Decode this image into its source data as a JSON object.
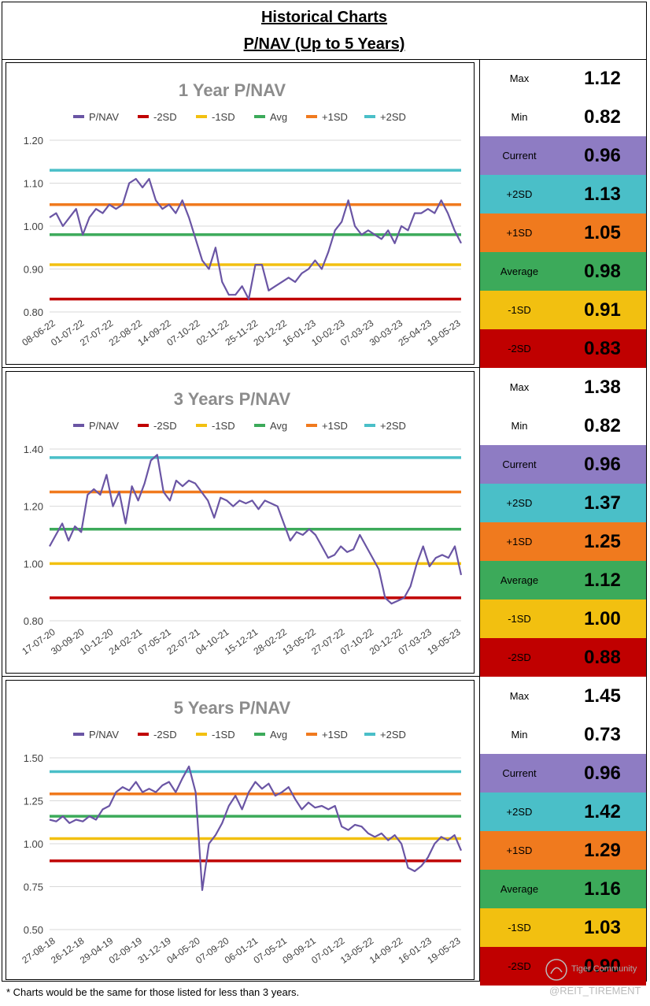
{
  "header": {
    "line1": "Historical Charts",
    "line2": "P/NAV (Up to 5 Years)"
  },
  "legend_labels": [
    "P/NAV",
    "-2SD",
    "-1SD",
    "Avg",
    "+1SD",
    "+2SD"
  ],
  "colors": {
    "pnav": "#6A55A4",
    "minus2": "#C00000",
    "minus1": "#F2C010",
    "avg": "#3CAA5A",
    "plus1": "#F07A1E",
    "plus2": "#4ABFC8",
    "current_bg": "#8E7CC3",
    "plus2_bg": "#4ABFC8",
    "plus1_bg": "#F07A1E",
    "avg_bg": "#3CAA5A",
    "minus1_bg": "#F2C010",
    "minus2_bg": "#C00000"
  },
  "chart_data": [
    {
      "type": "line",
      "title": "1 Year P/NAV",
      "ylim": [
        0.8,
        1.2
      ],
      "yticks": [
        "0.80",
        "0.90",
        "1.00",
        "1.10",
        "1.20"
      ],
      "x_tick_labels": [
        "08-06-22",
        "01-07-22",
        "27-07-22",
        "22-08-22",
        "14-09-22",
        "07-10-22",
        "02-11-22",
        "25-11-22",
        "20-12-22",
        "16-01-23",
        "10-02-23",
        "07-03-23",
        "30-03-23",
        "25-04-23",
        "19-05-23"
      ],
      "series": [
        {
          "name": "P/NAV",
          "values": [
            1.02,
            1.03,
            1.0,
            1.02,
            1.04,
            0.98,
            1.02,
            1.04,
            1.03,
            1.05,
            1.04,
            1.05,
            1.1,
            1.11,
            1.09,
            1.11,
            1.06,
            1.04,
            1.05,
            1.03,
            1.06,
            1.02,
            0.97,
            0.92,
            0.9,
            0.95,
            0.87,
            0.84,
            0.84,
            0.86,
            0.83,
            0.91,
            0.91,
            0.85,
            0.86,
            0.87,
            0.88,
            0.87,
            0.89,
            0.9,
            0.92,
            0.9,
            0.94,
            0.99,
            1.01,
            1.06,
            1.0,
            0.98,
            0.99,
            0.98,
            0.97,
            0.99,
            0.96,
            1.0,
            0.99,
            1.03,
            1.03,
            1.04,
            1.03,
            1.06,
            1.03,
            0.99,
            0.96
          ]
        },
        {
          "name": "-2SD",
          "values": [
            0.83
          ]
        },
        {
          "name": "-1SD",
          "values": [
            0.91
          ]
        },
        {
          "name": "Avg",
          "values": [
            0.98
          ]
        },
        {
          "name": "+1SD",
          "values": [
            1.05
          ]
        },
        {
          "name": "+2SD",
          "values": [
            1.13
          ]
        }
      ]
    },
    {
      "type": "line",
      "title": "3 Years P/NAV",
      "ylim": [
        0.8,
        1.4
      ],
      "yticks": [
        "0.80",
        "1.00",
        "1.20",
        "1.40"
      ],
      "x_tick_labels": [
        "17-07-20",
        "30-09-20",
        "10-12-20",
        "24-02-21",
        "07-05-21",
        "22-07-21",
        "04-10-21",
        "15-12-21",
        "28-02-22",
        "13-05-22",
        "27-07-22",
        "07-10-22",
        "20-12-22",
        "07-03-23",
        "19-05-23"
      ],
      "series": [
        {
          "name": "P/NAV",
          "values": [
            1.06,
            1.1,
            1.14,
            1.08,
            1.13,
            1.11,
            1.24,
            1.26,
            1.24,
            1.31,
            1.2,
            1.25,
            1.14,
            1.27,
            1.22,
            1.28,
            1.36,
            1.38,
            1.25,
            1.22,
            1.29,
            1.27,
            1.29,
            1.28,
            1.25,
            1.22,
            1.16,
            1.23,
            1.22,
            1.2,
            1.22,
            1.21,
            1.22,
            1.19,
            1.22,
            1.21,
            1.2,
            1.14,
            1.08,
            1.11,
            1.1,
            1.12,
            1.1,
            1.06,
            1.02,
            1.03,
            1.06,
            1.04,
            1.05,
            1.1,
            1.06,
            1.02,
            0.98,
            0.88,
            0.86,
            0.87,
            0.88,
            0.92,
            1.0,
            1.06,
            0.99,
            1.02,
            1.03,
            1.02,
            1.06,
            0.96
          ]
        },
        {
          "name": "-2SD",
          "values": [
            0.88
          ]
        },
        {
          "name": "-1SD",
          "values": [
            1.0
          ]
        },
        {
          "name": "Avg",
          "values": [
            1.12
          ]
        },
        {
          "name": "+1SD",
          "values": [
            1.25
          ]
        },
        {
          "name": "+2SD",
          "values": [
            1.37
          ]
        }
      ]
    },
    {
      "type": "line",
      "title": "5 Years P/NAV",
      "ylim": [
        0.5,
        1.5
      ],
      "yticks": [
        "0.50",
        "0.75",
        "1.00",
        "1.25",
        "1.50"
      ],
      "x_tick_labels": [
        "27-08-18",
        "26-12-18",
        "29-04-19",
        "02-09-19",
        "31-12-19",
        "04-05-20",
        "07-09-20",
        "06-01-21",
        "07-05-21",
        "09-09-21",
        "07-01-22",
        "13-05-22",
        "14-09-22",
        "16-01-23",
        "19-05-23"
      ],
      "series": [
        {
          "name": "P/NAV",
          "values": [
            1.14,
            1.13,
            1.16,
            1.12,
            1.14,
            1.13,
            1.16,
            1.14,
            1.2,
            1.22,
            1.3,
            1.33,
            1.31,
            1.36,
            1.3,
            1.32,
            1.3,
            1.34,
            1.36,
            1.3,
            1.38,
            1.45,
            1.3,
            0.73,
            1.0,
            1.05,
            1.12,
            1.22,
            1.28,
            1.2,
            1.3,
            1.36,
            1.32,
            1.35,
            1.28,
            1.3,
            1.33,
            1.26,
            1.2,
            1.24,
            1.21,
            1.22,
            1.2,
            1.22,
            1.1,
            1.08,
            1.11,
            1.1,
            1.06,
            1.04,
            1.06,
            1.02,
            1.05,
            1.0,
            0.86,
            0.84,
            0.87,
            0.92,
            1.0,
            1.04,
            1.02,
            1.05,
            0.96
          ]
        },
        {
          "name": "-2SD",
          "values": [
            0.9
          ]
        },
        {
          "name": "-1SD",
          "values": [
            1.03
          ]
        },
        {
          "name": "Avg",
          "values": [
            1.16
          ]
        },
        {
          "name": "+1SD",
          "values": [
            1.29
          ]
        },
        {
          "name": "+2SD",
          "values": [
            1.42
          ]
        }
      ]
    }
  ],
  "stats": [
    [
      {
        "label": "Max",
        "value": "1.12"
      },
      {
        "label": "Min",
        "value": "0.82"
      },
      {
        "label": "Current",
        "value": "0.96"
      },
      {
        "label": "+2SD",
        "value": "1.13"
      },
      {
        "label": "+1SD",
        "value": "1.05"
      },
      {
        "label": "Average",
        "value": "0.98"
      },
      {
        "label": "-1SD",
        "value": "0.91"
      },
      {
        "label": "-2SD",
        "value": "0.83"
      }
    ],
    [
      {
        "label": "Max",
        "value": "1.38"
      },
      {
        "label": "Min",
        "value": "0.82"
      },
      {
        "label": "Current",
        "value": "0.96"
      },
      {
        "label": "+2SD",
        "value": "1.37"
      },
      {
        "label": "+1SD",
        "value": "1.25"
      },
      {
        "label": "Average",
        "value": "1.12"
      },
      {
        "label": "-1SD",
        "value": "1.00"
      },
      {
        "label": "-2SD",
        "value": "0.88"
      }
    ],
    [
      {
        "label": "Max",
        "value": "1.45"
      },
      {
        "label": "Min",
        "value": "0.73"
      },
      {
        "label": "Current",
        "value": "0.96"
      },
      {
        "label": "+2SD",
        "value": "1.42"
      },
      {
        "label": "+1SD",
        "value": "1.29"
      },
      {
        "label": "Average",
        "value": "1.16"
      },
      {
        "label": "-1SD",
        "value": "1.03"
      },
      {
        "label": "-2SD",
        "value": "0.90"
      }
    ]
  ],
  "footnote": "* Charts would be the same for those listed for less than 3 years.",
  "watermark": {
    "brand": "Tiger Community",
    "handle": "@REIT_TIREMENT"
  }
}
